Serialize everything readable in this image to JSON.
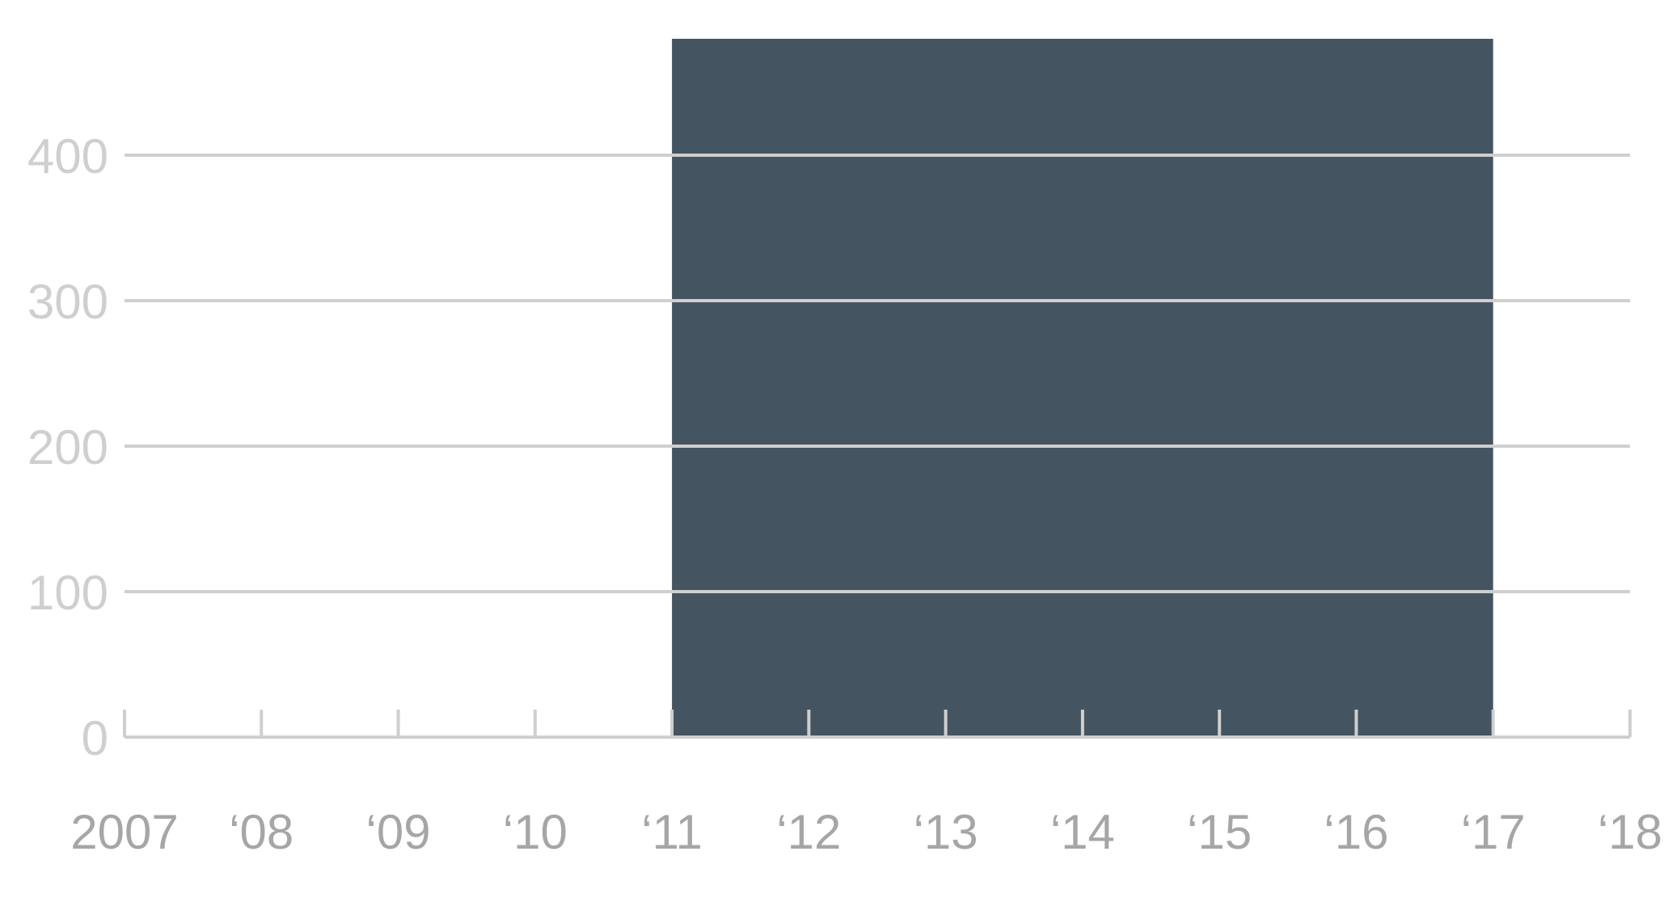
{
  "chart_data": {
    "type": "bar",
    "x_tick_labels": [
      "2007",
      "‘08",
      "‘09",
      "‘10",
      "‘11",
      "‘12",
      "‘13",
      "‘14",
      "‘15",
      "‘16",
      "‘17",
      "‘18"
    ],
    "x_ticks": [
      2007,
      2008,
      2009,
      2010,
      2011,
      2012,
      2013,
      2014,
      2015,
      2016,
      2017,
      2018
    ],
    "xlim": [
      2007,
      2018
    ],
    "y_ticks": [
      0,
      100,
      200,
      300,
      400
    ],
    "y_tick_labels": [
      "0",
      "100",
      "200",
      "300",
      "400"
    ],
    "ylim": [
      0,
      480
    ],
    "bars": [
      {
        "x_start": 2011,
        "x_end": 2017,
        "value": 480
      }
    ],
    "grid": true,
    "colors": {
      "bar": "#455461",
      "grid": "#cfcfcf",
      "axis": "#cfcfcf",
      "x_tick_label": "#a6a6a6",
      "y_tick_label": "#cfcfcf"
    },
    "title": "",
    "xlabel": "",
    "ylabel": ""
  }
}
